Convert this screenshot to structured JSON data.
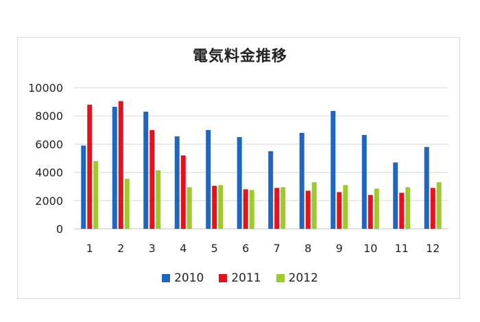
{
  "chart_data": {
    "type": "bar",
    "title": "電気料金推移",
    "categories": [
      "1",
      "2",
      "3",
      "4",
      "5",
      "6",
      "7",
      "8",
      "9",
      "10",
      "11",
      "12"
    ],
    "series": [
      {
        "name": "2010",
        "color": "#1f66c1",
        "values": [
          5900,
          8650,
          8300,
          6550,
          7000,
          6500,
          5500,
          6800,
          8350,
          6650,
          4700,
          5800
        ]
      },
      {
        "name": "2011",
        "color": "#e8101a",
        "values": [
          8800,
          9050,
          7000,
          5200,
          3050,
          2800,
          2900,
          2700,
          2600,
          2400,
          2550,
          2900
        ]
      },
      {
        "name": "2012",
        "color": "#9ccb2b",
        "values": [
          4800,
          3550,
          4150,
          2950,
          3100,
          2750,
          2950,
          3300,
          3100,
          2850,
          2950,
          3300
        ]
      }
    ],
    "yticks": [
      "0",
      "2000",
      "4000",
      "6000",
      "8000",
      "10000"
    ],
    "ylim": [
      0,
      10000
    ],
    "grid": true,
    "legend_position": "bottom"
  }
}
